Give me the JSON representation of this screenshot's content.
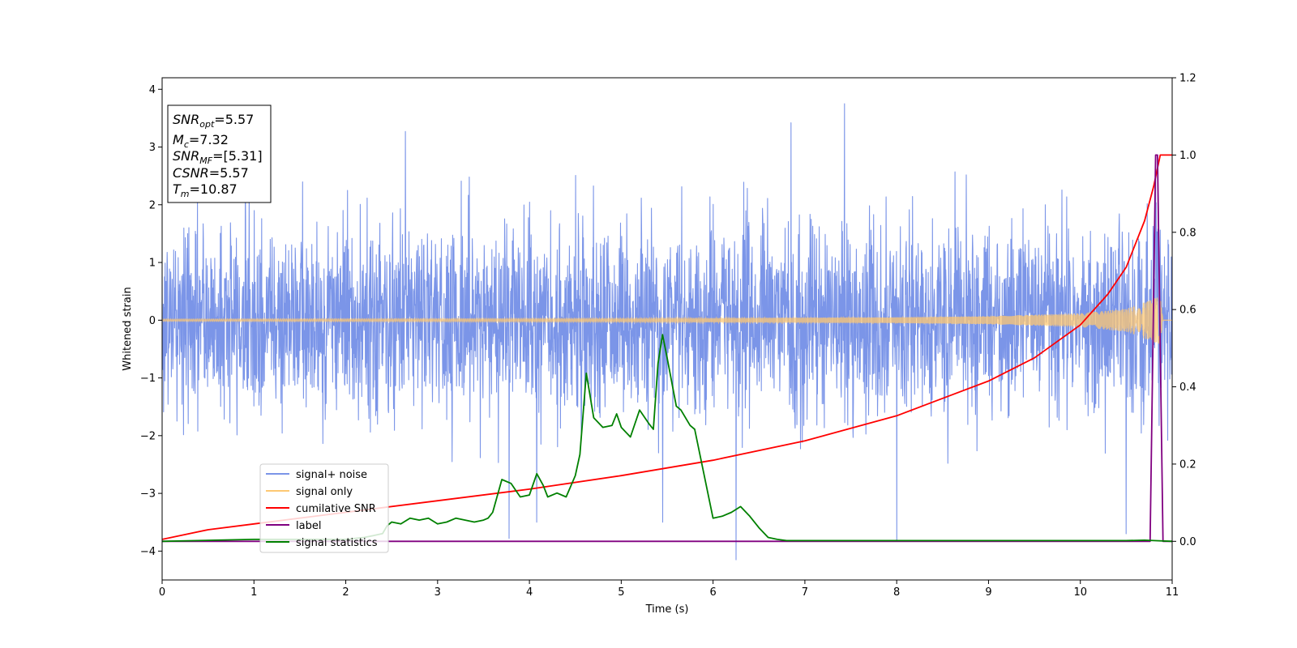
{
  "chart_data": {
    "type": "line",
    "xlabel": "Time (s)",
    "ylabel": "Whitened strain",
    "xlim": [
      0,
      11
    ],
    "ylim": [
      -4.5,
      4.2
    ],
    "y2lim": [
      -0.1,
      1.2
    ],
    "x_ticks": [
      0,
      1,
      2,
      3,
      4,
      5,
      6,
      7,
      8,
      9,
      10,
      11
    ],
    "y_ticks": [
      -4,
      -3,
      -2,
      -1,
      0,
      1,
      2,
      3,
      4
    ],
    "y_tick_labels": [
      "−4",
      "−3",
      "−2",
      "−1",
      "0",
      "1",
      "2",
      "3",
      "4"
    ],
    "y2_ticks": [
      0.0,
      0.2,
      0.4,
      0.6,
      0.8,
      1.0,
      1.2
    ],
    "y2_tick_labels": [
      "0.0",
      "0.2",
      "0.4",
      "0.6",
      "0.8",
      "1.0",
      "1.2"
    ],
    "grid": false,
    "legend_position": "lower-left",
    "annotation": {
      "lines": [
        {
          "base": "SNR",
          "sub": "opt",
          "value": "=5.57"
        },
        {
          "base": "M",
          "sub": "c",
          "value": "=7.32"
        },
        {
          "base": "SNR",
          "sub": "MF",
          "value": "=[5.31]"
        },
        {
          "base": "CSNR",
          "sub": "",
          "value": "=5.57"
        },
        {
          "base": "T",
          "sub": "m",
          "value": "=10.87"
        }
      ]
    },
    "series": [
      {
        "name": "signal+ noise",
        "color": "#7b95e8",
        "axis": "left",
        "style": "noise band",
        "range": [
          -2.6,
          2.6
        ],
        "notable_spikes": [
          [
            3.78,
            -3.78
          ],
          [
            4.08,
            -3.5
          ],
          [
            5.45,
            -3.5
          ],
          [
            6.25,
            -4.15
          ],
          [
            7.43,
            3.75
          ],
          [
            6.85,
            3.42
          ],
          [
            10.5,
            -3.7
          ],
          [
            8.0,
            -3.82
          ],
          [
            2.65,
            3.27
          ],
          [
            10.82,
            2.85
          ]
        ]
      },
      {
        "name": "signal only",
        "color": "#fdc873",
        "axis": "left",
        "style": "chirp",
        "envelope": [
          [
            0,
            0.02
          ],
          [
            5,
            0.03
          ],
          [
            8,
            0.05
          ],
          [
            9,
            0.07
          ],
          [
            10,
            0.12
          ],
          [
            10.5,
            0.2
          ],
          [
            10.87,
            0.42
          ],
          [
            10.9,
            0.0
          ],
          [
            11,
            0.0
          ]
        ]
      },
      {
        "name": "cumilative SNR",
        "color": "#ff0000",
        "axis": "right",
        "x": [
          0,
          0.5,
          1,
          2,
          3,
          4,
          5,
          6,
          7,
          8,
          8.5,
          9,
          9.5,
          10,
          10.3,
          10.5,
          10.7,
          10.8,
          10.87,
          10.9,
          11
        ],
        "values": [
          0.005,
          0.03,
          0.045,
          0.075,
          0.105,
          0.135,
          0.17,
          0.21,
          0.26,
          0.325,
          0.37,
          0.415,
          0.475,
          0.56,
          0.64,
          0.71,
          0.83,
          0.92,
          1.0,
          1.0,
          1.0
        ]
      },
      {
        "name": "label",
        "color": "#800080",
        "axis": "right",
        "x": [
          0,
          10.76,
          10.82,
          10.84,
          10.9,
          11
        ],
        "values": [
          0.0,
          0.0,
          1.0,
          1.0,
          0.0,
          0.0
        ]
      },
      {
        "name": "signal statistics",
        "color": "#008000",
        "axis": "right",
        "x": [
          0,
          1,
          2,
          2.2,
          2.3,
          2.4,
          2.45,
          2.5,
          2.6,
          2.7,
          2.8,
          2.9,
          3.0,
          3.1,
          3.2,
          3.3,
          3.4,
          3.5,
          3.55,
          3.6,
          3.7,
          3.8,
          3.9,
          4.0,
          4.08,
          4.15,
          4.2,
          4.3,
          4.4,
          4.5,
          4.55,
          4.62,
          4.7,
          4.8,
          4.9,
          4.95,
          5.0,
          5.1,
          5.2,
          5.3,
          5.35,
          5.4,
          5.45,
          5.5,
          5.6,
          5.65,
          5.75,
          5.8,
          5.9,
          6.0,
          6.1,
          6.2,
          6.3,
          6.4,
          6.5,
          6.6,
          6.7,
          6.8,
          7.0,
          7.5,
          8.0,
          8.5,
          9.0,
          9.5,
          10.0,
          10.5,
          10.7,
          10.8,
          11
        ],
        "values": [
          0.0,
          0.005,
          0.005,
          0.01,
          0.015,
          0.02,
          0.04,
          0.05,
          0.045,
          0.06,
          0.055,
          0.06,
          0.045,
          0.05,
          0.06,
          0.055,
          0.05,
          0.055,
          0.06,
          0.075,
          0.16,
          0.15,
          0.115,
          0.12,
          0.175,
          0.145,
          0.115,
          0.125,
          0.115,
          0.17,
          0.225,
          0.435,
          0.32,
          0.295,
          0.3,
          0.33,
          0.295,
          0.27,
          0.34,
          0.305,
          0.29,
          0.46,
          0.535,
          0.475,
          0.35,
          0.34,
          0.3,
          0.29,
          0.175,
          0.06,
          0.065,
          0.075,
          0.09,
          0.065,
          0.035,
          0.01,
          0.005,
          0.002,
          0.002,
          0.002,
          0.002,
          0.002,
          0.002,
          0.002,
          0.002,
          0.002,
          0.003,
          0.002,
          0.0
        ]
      }
    ]
  }
}
